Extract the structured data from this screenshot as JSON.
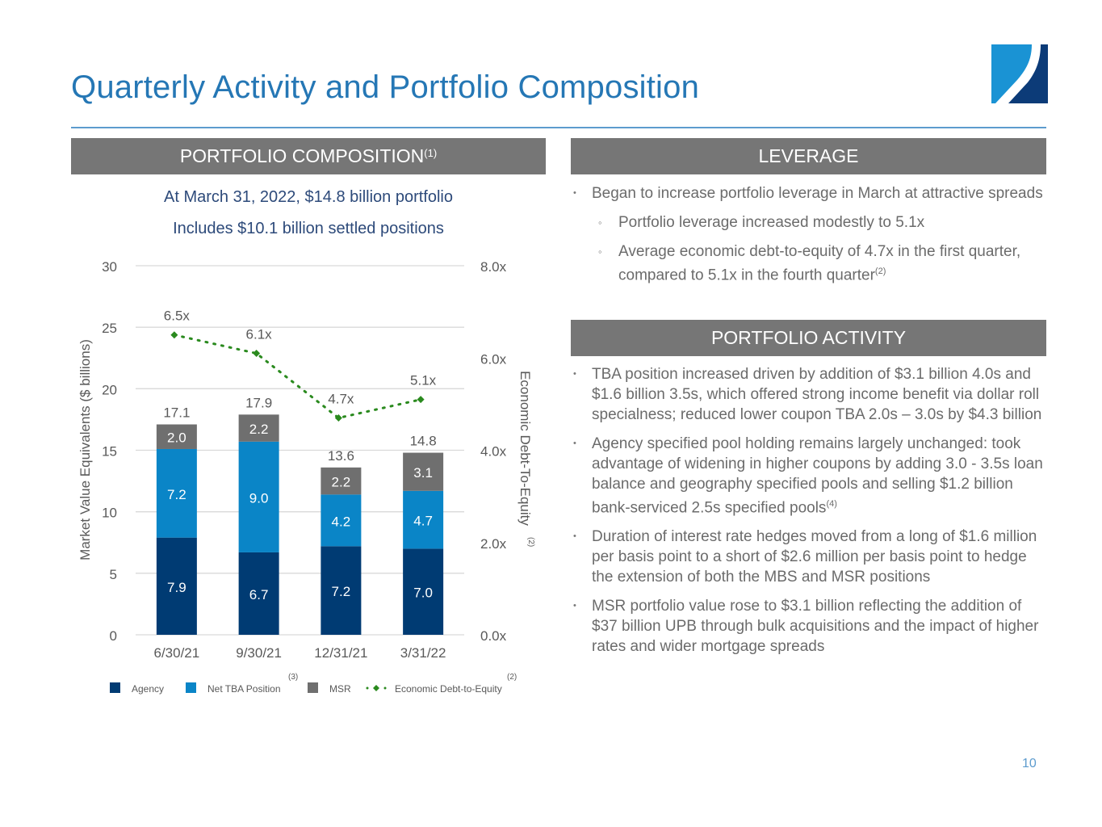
{
  "header": {
    "title": "Quarterly Activity and Portfolio Composition",
    "logo_icon": "company-logo"
  },
  "composition": {
    "band_label": "PORTFOLIO COMPOSITION",
    "band_footnote": "(1)",
    "subhead_1": "At March 31, 2022, $14.8 billion portfolio",
    "subhead_2": "Includes $10.1 billion settled positions"
  },
  "leverage": {
    "band_label": "LEVERAGE",
    "bullets": [
      {
        "text": "Began to increase portfolio leverage in March at attractive spreads",
        "footnote": ""
      }
    ],
    "sub_bullets": [
      {
        "text": "Portfolio leverage increased modestly to 5.1x",
        "footnote": ""
      },
      {
        "text": "Average economic debt-to-equity of 4.7x in the first quarter, compared to 5.1x in the fourth quarter",
        "footnote": "(2)"
      }
    ]
  },
  "activity": {
    "band_label": "PORTFOLIO ACTIVITY",
    "bullets": [
      {
        "text": "TBA position increased driven by addition of $3.1 billion 4.0s and $1.6 billion 3.5s, which offered strong income benefit via dollar roll specialness; reduced lower coupon TBA 2.0s – 3.0s by $4.3 billion",
        "footnote": ""
      },
      {
        "text": "Agency specified pool holding remains largely unchanged: took advantage of widening in higher coupons by adding 3.0 - 3.5s loan balance and geography specified pools and selling $1.2 billion bank-serviced 2.5s specified pools",
        "footnote": "(4)"
      },
      {
        "text": "Duration of interest rate hedges moved from a long of $1.6 million per basis point to a short of $2.6 million per basis point to hedge the extension of both the MBS and MSR positions",
        "footnote": ""
      },
      {
        "text": "MSR portfolio value rose to $3.1 billion reflecting the addition of $37 billion UPB through bulk acquisitions and the impact of higher rates and wider mortgage spreads",
        "footnote": ""
      }
    ]
  },
  "page_number": "10",
  "colors": {
    "title_blue": "#2577b5",
    "band_gray": "#767676",
    "agency": "#003b73",
    "net_tba": "#0a85c7",
    "msr": "#6f6f6f",
    "debt_equity": "#2a8a1e"
  },
  "chart_data": {
    "type": "bar",
    "stacked": true,
    "categories": [
      "6/30/21",
      "9/30/21",
      "12/31/21",
      "3/31/22"
    ],
    "series": [
      {
        "name": "Agency",
        "values": [
          7.9,
          6.7,
          7.2,
          7.0
        ],
        "color": "#003b73"
      },
      {
        "name": "Net TBA Position",
        "footnote": "(3)",
        "values": [
          7.2,
          9.0,
          4.2,
          4.7
        ],
        "color": "#0a85c7"
      },
      {
        "name": "MSR",
        "values": [
          2.0,
          2.2,
          2.2,
          3.1
        ],
        "color": "#6f6f6f"
      }
    ],
    "totals": [
      17.1,
      17.9,
      13.6,
      14.8
    ],
    "line_series": {
      "name": "Economic Debt-to-Equity",
      "footnote": "(2)",
      "values": [
        6.5,
        6.1,
        4.7,
        5.1
      ],
      "labels": [
        "6.5x",
        "6.1x",
        "4.7x",
        "5.1x"
      ],
      "axis": "right",
      "style": "dotted",
      "marker": "diamond",
      "color": "#2a8a1e"
    },
    "ylabel": "Market Value Equivalents ($ billions)",
    "ylim": [
      0,
      30
    ],
    "yticks": [
      "0",
      "5",
      "10",
      "15",
      "20",
      "25",
      "30"
    ],
    "ytick_values": [
      0,
      5,
      10,
      15,
      20,
      25,
      30
    ],
    "y2label": "Economic Debt-To-Equity",
    "y2label_footnote": "(2)",
    "y2lim": [
      0,
      8
    ],
    "y2ticks": [
      "0.0x",
      "2.0x",
      "4.0x",
      "6.0x",
      "8.0x"
    ],
    "y2tick_values": [
      0,
      2,
      4,
      6,
      8
    ],
    "grid": true,
    "legend_position": "bottom"
  }
}
